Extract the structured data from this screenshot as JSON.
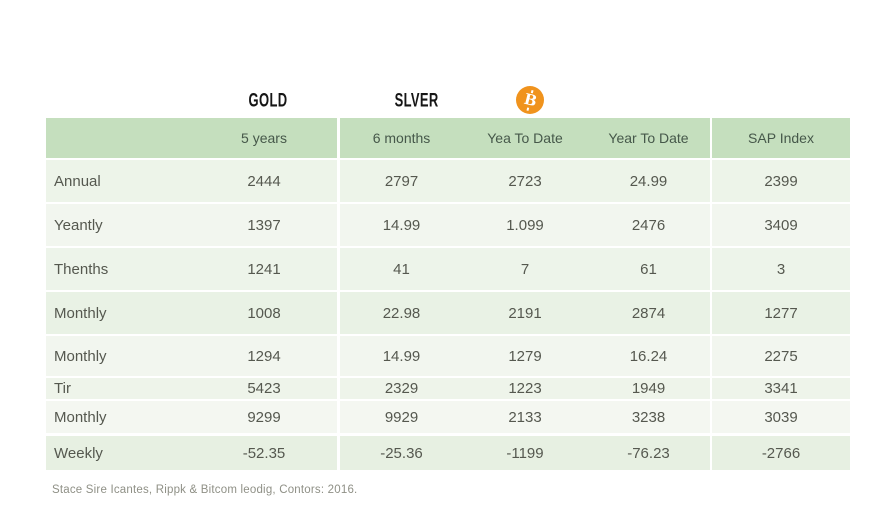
{
  "groups": {
    "gold": "GOLD",
    "silver": "SLVER"
  },
  "icons": {
    "bitcoin_glyph": "B"
  },
  "colors": {
    "header_green": "#c5dfbe",
    "row_pale_green": "#edf4e9",
    "row_light": "#f2f6ef",
    "weekly_row_green": "#e7f0e2",
    "bitcoin_orange": "#f0931d",
    "text_dark": "#55584f"
  },
  "table": {
    "columns": [
      "",
      "5 years",
      "6 months",
      "Yea To Date",
      "Year To Date",
      "SAP Index"
    ],
    "rows": [
      {
        "label": "Annual",
        "values": [
          "2444",
          "2797",
          "2723",
          "24.99",
          "2399"
        ]
      },
      {
        "label": "Yeantly",
        "values": [
          "1397",
          "14.99",
          "1.099",
          "2476",
          "3409"
        ]
      },
      {
        "label": "Thenths",
        "values": [
          "1241",
          "41",
          "7",
          "61",
          "3"
        ]
      },
      {
        "label": "Monthly",
        "values": [
          "1008",
          "22.98",
          "2191",
          "2874",
          "1277"
        ]
      },
      {
        "label": "Monthly",
        "values": [
          "1294",
          "14.99",
          "1279",
          "16.24",
          "2275"
        ]
      },
      {
        "label": "Tir",
        "values": [
          "5423",
          "2329",
          "1223",
          "1949",
          "3341"
        ]
      },
      {
        "label": "Monthly",
        "values": [
          "9299",
          "9929",
          "2133",
          "3238",
          "3039"
        ]
      },
      {
        "label": "Weekly",
        "values": [
          "-52.35",
          "-25.36",
          "-1199",
          "-76.23",
          "-2766"
        ]
      }
    ]
  },
  "footnote": "Stace Sire Icantes, Rippk & Bitcom leodig, Contors: 2016.",
  "chart_data": {
    "type": "table",
    "title": "",
    "group_headers": [
      "GOLD",
      "SLVER",
      "bitcoin-icon"
    ],
    "columns": [
      "5 years",
      "6 months",
      "Yea To Date",
      "Year To Date",
      "SAP Index"
    ],
    "row_labels": [
      "Annual",
      "Yeantly",
      "Thenths",
      "Monthly",
      "Monthly",
      "Tir",
      "Monthly",
      "Weekly"
    ],
    "rows": [
      [
        2444,
        2797,
        2723,
        24.99,
        2399
      ],
      [
        1397,
        14.99,
        1.099,
        2476,
        3409
      ],
      [
        1241,
        41,
        7,
        61,
        3
      ],
      [
        1008,
        22.98,
        2191,
        2874,
        1277
      ],
      [
        1294,
        14.99,
        1279,
        16.24,
        2275
      ],
      [
        5423,
        2329,
        1223,
        1949,
        3341
      ],
      [
        9299,
        9929,
        2133,
        3238,
        3039
      ],
      [
        -52.35,
        -25.36,
        -1199,
        -76.23,
        -2766
      ]
    ],
    "source_note": "Stace Sire Icantes, Rippk & Bitcom leodig, Contors: 2016."
  }
}
